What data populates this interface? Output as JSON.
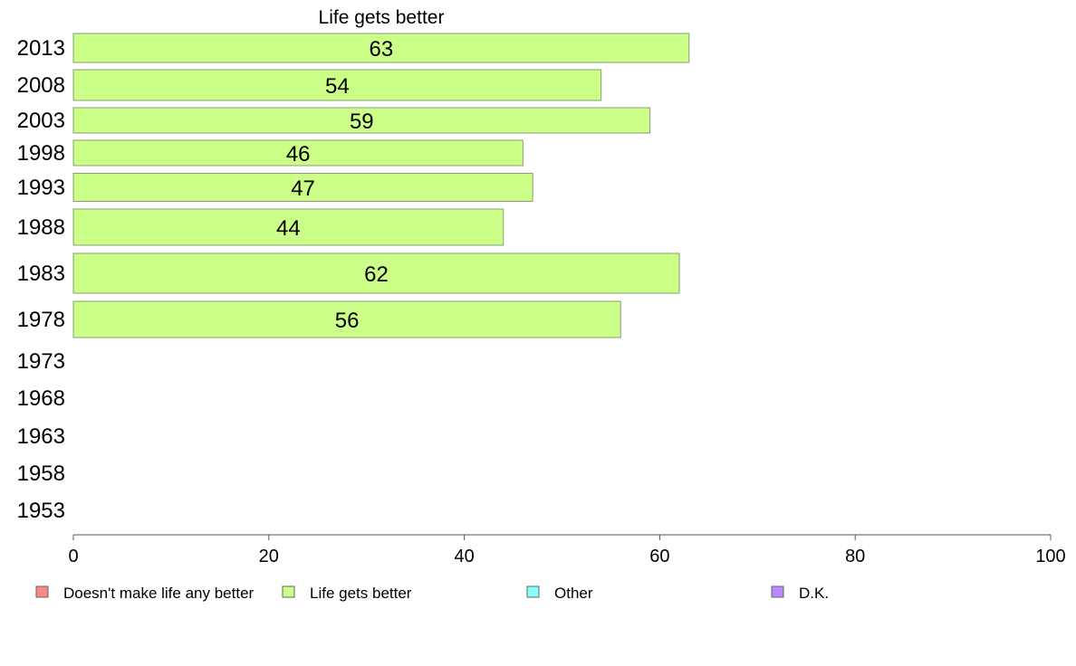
{
  "chart_data": {
    "type": "bar",
    "orientation": "horizontal",
    "title": "Life gets better",
    "categories": [
      "2013",
      "2008",
      "2003",
      "1998",
      "1993",
      "1988",
      "1983",
      "1978",
      "1973",
      "1968",
      "1963",
      "1958",
      "1953"
    ],
    "series": [
      {
        "name": "Life gets better",
        "color": "#ccff88",
        "values": [
          63,
          54,
          59,
          46,
          47,
          44,
          62,
          56,
          null,
          null,
          null,
          null,
          null
        ]
      }
    ],
    "value_labels": [
      "63",
      "54",
      "59",
      "46",
      "47",
      "44",
      "62",
      "56"
    ],
    "xlim": [
      0,
      100
    ],
    "x_ticks": [
      "0",
      "20",
      "40",
      "60",
      "80",
      "100"
    ],
    "grid": false,
    "legend": {
      "placement": "bottom",
      "entries": [
        {
          "label": "Doesn't make life any better",
          "color": "#f88888"
        },
        {
          "label": "Life gets better",
          "color": "#ccff88"
        },
        {
          "label": "Other",
          "color": "#88ffff"
        },
        {
          "label": "D.K.",
          "color": "#bb88ff"
        }
      ]
    }
  }
}
